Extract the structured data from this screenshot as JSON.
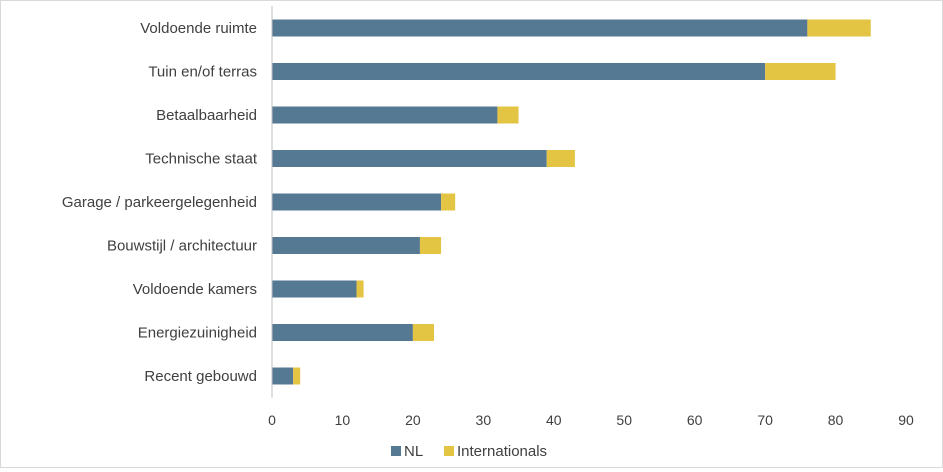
{
  "chart_data": {
    "type": "bar",
    "orientation": "horizontal",
    "stacked": true,
    "title": "",
    "xlabel": "",
    "ylabel": "",
    "categories": [
      "Voldoende ruimte",
      "Tuin en/of terras",
      "Betaalbaarheid",
      "Technische staat",
      "Garage / parkeergelegenheid",
      "Bouwstijl / architectuur",
      "Voldoende kamers",
      "Energiezuinigheid",
      "Recent gebouwd"
    ],
    "series": [
      {
        "name": "NL",
        "color": "#557893",
        "values": [
          76,
          70,
          32,
          39,
          24,
          21,
          12,
          20,
          3
        ]
      },
      {
        "name": "Internationals",
        "color": "#e3c443",
        "values": [
          9,
          10,
          3,
          4,
          2,
          3,
          1,
          3,
          1
        ]
      }
    ],
    "xlim": [
      0,
      90
    ],
    "xticks": [
      0,
      10,
      20,
      30,
      40,
      50,
      60,
      70,
      80,
      90
    ],
    "grid": false,
    "legend": "bottom"
  }
}
